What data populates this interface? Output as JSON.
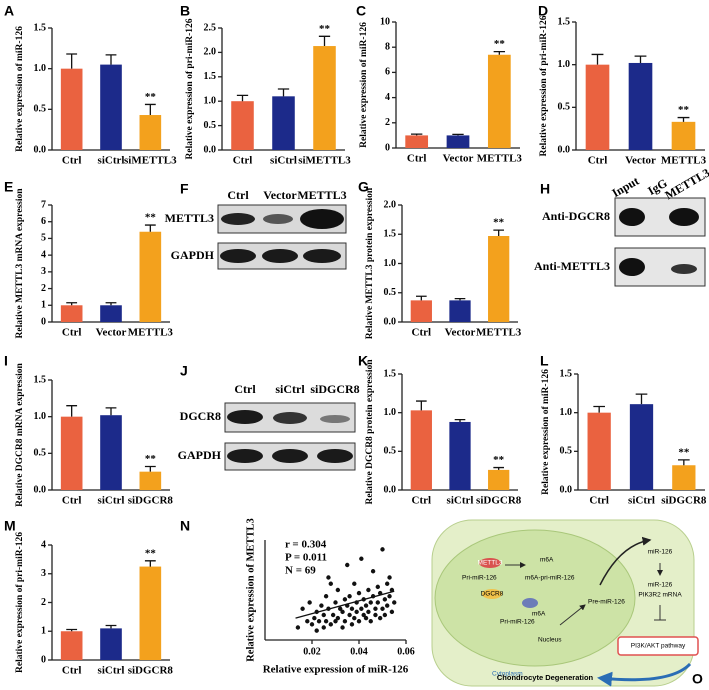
{
  "chart_data": [
    {
      "panel": "A",
      "type": "bar",
      "ylabel": "Relative expression of miR-126",
      "categories": [
        "Ctrl",
        "siCtrl",
        "siMETTL3"
      ],
      "values": [
        1.0,
        1.05,
        0.43
      ],
      "errors": [
        0.18,
        0.12,
        0.13
      ],
      "significance": [
        null,
        null,
        "**"
      ],
      "colors": [
        "#ea6240",
        "#1c2a8a",
        "#f3a11d"
      ],
      "ylim": [
        0,
        1.5
      ],
      "yticks": [
        {
          "value": 0,
          "label": "0.0"
        },
        0.5,
        {
          "value": 1,
          "label": "1.0"
        },
        1.5
      ]
    },
    {
      "panel": "B",
      "type": "bar",
      "ylabel": "Relative expression of pri-miR-126",
      "categories": [
        "Ctrl",
        "siCtrl",
        "siMETTL3"
      ],
      "values": [
        1.0,
        1.1,
        2.13
      ],
      "errors": [
        0.12,
        0.15,
        0.2
      ],
      "significance": [
        null,
        null,
        "**"
      ],
      "colors": [
        "#ea6240",
        "#1c2a8a",
        "#f3a11d"
      ],
      "ylim": [
        0,
        2.5
      ],
      "yticks": [
        {
          "value": 0,
          "label": "0.0"
        },
        0.5,
        {
          "value": 1,
          "label": "1.0"
        },
        1.5,
        {
          "value": 2,
          "label": "2.0"
        },
        2.5
      ]
    },
    {
      "panel": "C",
      "type": "bar",
      "ylabel": "Relative expression of miR-126",
      "categories": [
        "Ctrl",
        "Vector",
        "METTL3"
      ],
      "values": [
        1.0,
        1.0,
        7.4
      ],
      "errors": [
        0.1,
        0.08,
        0.25
      ],
      "significance": [
        null,
        null,
        "**"
      ],
      "colors": [
        "#ea6240",
        "#1c2a8a",
        "#f3a11d"
      ],
      "ylim": [
        0,
        10
      ],
      "yticks": [
        0,
        2,
        4,
        6,
        8,
        10
      ]
    },
    {
      "panel": "D",
      "type": "bar",
      "ylabel": "Relative expression of pri-miR-126",
      "categories": [
        "Ctrl",
        "Vector",
        "METTL3"
      ],
      "values": [
        1.0,
        1.02,
        0.33
      ],
      "errors": [
        0.12,
        0.08,
        0.05
      ],
      "significance": [
        null,
        null,
        "**"
      ],
      "colors": [
        "#ea6240",
        "#1c2a8a",
        "#f3a11d"
      ],
      "ylim": [
        0,
        1.5
      ],
      "yticks": [
        {
          "value": 0,
          "label": "0.0"
        },
        0.5,
        {
          "value": 1,
          "label": "1.0"
        },
        1.5
      ]
    },
    {
      "panel": "E",
      "type": "bar",
      "ylabel": "Relative METTL3 mRNA expression",
      "categories": [
        "Ctrl",
        "Vector",
        "METTL3"
      ],
      "values": [
        1.0,
        1.0,
        5.4
      ],
      "errors": [
        0.15,
        0.15,
        0.4
      ],
      "significance": [
        null,
        null,
        "**"
      ],
      "colors": [
        "#ea6240",
        "#1c2a8a",
        "#f3a11d"
      ],
      "ylim": [
        0,
        7
      ],
      "yticks": [
        0,
        1,
        2,
        3,
        4,
        5,
        6,
        7
      ]
    },
    {
      "panel": "G",
      "type": "bar",
      "ylabel": "Relative METTL3 protein expression",
      "categories": [
        "Ctrl",
        "Vector",
        "METTL3"
      ],
      "values": [
        0.37,
        0.37,
        1.47
      ],
      "errors": [
        0.07,
        0.03,
        0.1
      ],
      "significance": [
        null,
        null,
        "**"
      ],
      "colors": [
        "#ea6240",
        "#1c2a8a",
        "#f3a11d"
      ],
      "ylim": [
        0,
        2
      ],
      "yticks": [
        {
          "value": 0,
          "label": "0.0"
        },
        0.5,
        {
          "value": 1,
          "label": "1.0"
        },
        1.5,
        {
          "value": 2,
          "label": "2.0"
        }
      ]
    },
    {
      "panel": "I",
      "type": "bar",
      "ylabel": "Relative DGCR8 mRNA expression",
      "categories": [
        "Ctrl",
        "siCtrl",
        "siDGCR8"
      ],
      "values": [
        1.0,
        1.02,
        0.25
      ],
      "errors": [
        0.15,
        0.1,
        0.07
      ],
      "significance": [
        null,
        null,
        "**"
      ],
      "colors": [
        "#ea6240",
        "#1c2a8a",
        "#f3a11d"
      ],
      "ylim": [
        0,
        1.5
      ],
      "yticks": [
        {
          "value": 0,
          "label": "0.0"
        },
        0.5,
        {
          "value": 1,
          "label": "1.0"
        },
        1.5
      ]
    },
    {
      "panel": "K",
      "type": "bar",
      "ylabel": "Relative DGCR8 protein expression",
      "categories": [
        "Ctrl",
        "siCtrl",
        "siDGCR8"
      ],
      "values": [
        1.03,
        0.88,
        0.26
      ],
      "errors": [
        0.12,
        0.03,
        0.03
      ],
      "significance": [
        null,
        null,
        "**"
      ],
      "colors": [
        "#ea6240",
        "#1c2a8a",
        "#f3a11d"
      ],
      "ylim": [
        0,
        1.5
      ],
      "yticks": [
        {
          "value": 0,
          "label": "0.0"
        },
        0.5,
        {
          "value": 1,
          "label": "1.0"
        },
        1.5
      ]
    },
    {
      "panel": "L",
      "type": "bar",
      "ylabel": "Relative expression of miR-126",
      "categories": [
        "Ctrl",
        "siCtrl",
        "siDGCR8"
      ],
      "values": [
        1.0,
        1.11,
        0.32
      ],
      "errors": [
        0.08,
        0.13,
        0.07
      ],
      "significance": [
        null,
        null,
        "**"
      ],
      "colors": [
        "#ea6240",
        "#1c2a8a",
        "#f3a11d"
      ],
      "ylim": [
        0,
        1.5
      ],
      "yticks": [
        {
          "value": 0,
          "label": "0.0"
        },
        0.5,
        {
          "value": 1,
          "label": "1.0"
        },
        1.5
      ]
    },
    {
      "panel": "M",
      "type": "bar",
      "ylabel": "Relative expression of pri-miR-126",
      "categories": [
        "Ctrl",
        "siCtrl",
        "siDGCR8"
      ],
      "values": [
        1.0,
        1.1,
        3.25
      ],
      "errors": [
        0.06,
        0.1,
        0.2
      ],
      "significance": [
        null,
        null,
        "**"
      ],
      "colors": [
        "#ea6240",
        "#1c2a8a",
        "#f3a11d"
      ],
      "ylim": [
        0,
        4
      ],
      "yticks": [
        0,
        1,
        2,
        3,
        4
      ]
    },
    {
      "panel": "N",
      "type": "scatter",
      "xlabel": "Relative expression of miR-126",
      "ylabel": "Relative expression of METTL3",
      "stats": [
        "r = 0.304",
        "P = 0.011",
        "N = 69"
      ],
      "color": "#111111",
      "x": [
        0.014,
        0.016,
        0.018,
        0.019,
        0.02,
        0.021,
        0.022,
        0.022,
        0.023,
        0.024,
        0.025,
        0.025,
        0.026,
        0.026,
        0.027,
        0.028,
        0.028,
        0.029,
        0.03,
        0.03,
        0.031,
        0.031,
        0.032,
        0.033,
        0.033,
        0.034,
        0.034,
        0.035,
        0.035,
        0.036,
        0.036,
        0.037,
        0.037,
        0.038,
        0.038,
        0.039,
        0.039,
        0.04,
        0.04,
        0.041,
        0.041,
        0.042,
        0.042,
        0.043,
        0.043,
        0.044,
        0.044,
        0.045,
        0.045,
        0.046,
        0.046,
        0.047,
        0.047,
        0.048,
        0.048,
        0.049,
        0.049,
        0.05,
        0.05,
        0.051,
        0.051,
        0.052,
        0.052,
        0.053,
        0.053,
        0.054,
        0.054,
        0.055,
        0.027
      ],
      "y": [
        0.2,
        0.5,
        0.3,
        0.6,
        0.25,
        0.35,
        0.45,
        0.15,
        0.3,
        0.55,
        0.2,
        0.4,
        0.3,
        0.7,
        0.5,
        0.25,
        0.9,
        0.4,
        0.3,
        0.6,
        0.35,
        0.8,
        0.5,
        0.2,
        0.45,
        0.65,
        0.3,
        0.55,
        1.2,
        0.4,
        0.7,
        0.25,
        0.5,
        0.35,
        0.9,
        0.6,
        0.45,
        0.3,
        0.75,
        0.5,
        1.3,
        0.4,
        0.65,
        0.35,
        0.55,
        0.8,
        0.45,
        0.6,
        0.3,
        0.7,
        1.1,
        0.5,
        0.4,
        0.85,
        0.6,
        0.35,
        0.75,
        0.5,
        1.45,
        0.65,
        0.4,
        0.9,
        0.55,
        0.7,
        1.0,
        0.45,
        0.8,
        0.6,
        1.0
      ],
      "trend_x": [
        0.013,
        0.055
      ],
      "trend_y": [
        0.35,
        0.78
      ],
      "xlim": [
        0,
        0.06
      ],
      "xticks": [
        0.02,
        0.04,
        0.06
      ],
      "ylim": [
        0,
        1.6
      ]
    }
  ],
  "blots": [
    {
      "panel": "F",
      "columns": [
        "Ctrl",
        "Vector",
        "METTL3"
      ],
      "rows": [
        "METTL3",
        "GAPDH"
      ]
    },
    {
      "panel": "H",
      "columns": [
        "Input",
        "IgG",
        "METTL3"
      ],
      "rows": [
        "Anti-DGCR8",
        "Anti-METTL3"
      ]
    },
    {
      "panel": "J",
      "columns": [
        "Ctrl",
        "siCtrl",
        "siDGCR8"
      ],
      "rows": [
        "DGCR8",
        "GAPDH"
      ]
    }
  ],
  "diagram": {
    "panel": "O",
    "labels": [
      "METTL3",
      "m6A",
      "Pri-miR-126",
      "m6A-pri-miR-126",
      "DGCR8",
      "m6A",
      "Pri-miR-126",
      "Pre-miR-126",
      "Nucleus",
      "Cytoplasm",
      "miR-126",
      "miR-126",
      "PIK3R2 mRNA",
      "PI3K/AKT pathway",
      "Chondrocyte Degeneration"
    ]
  }
}
